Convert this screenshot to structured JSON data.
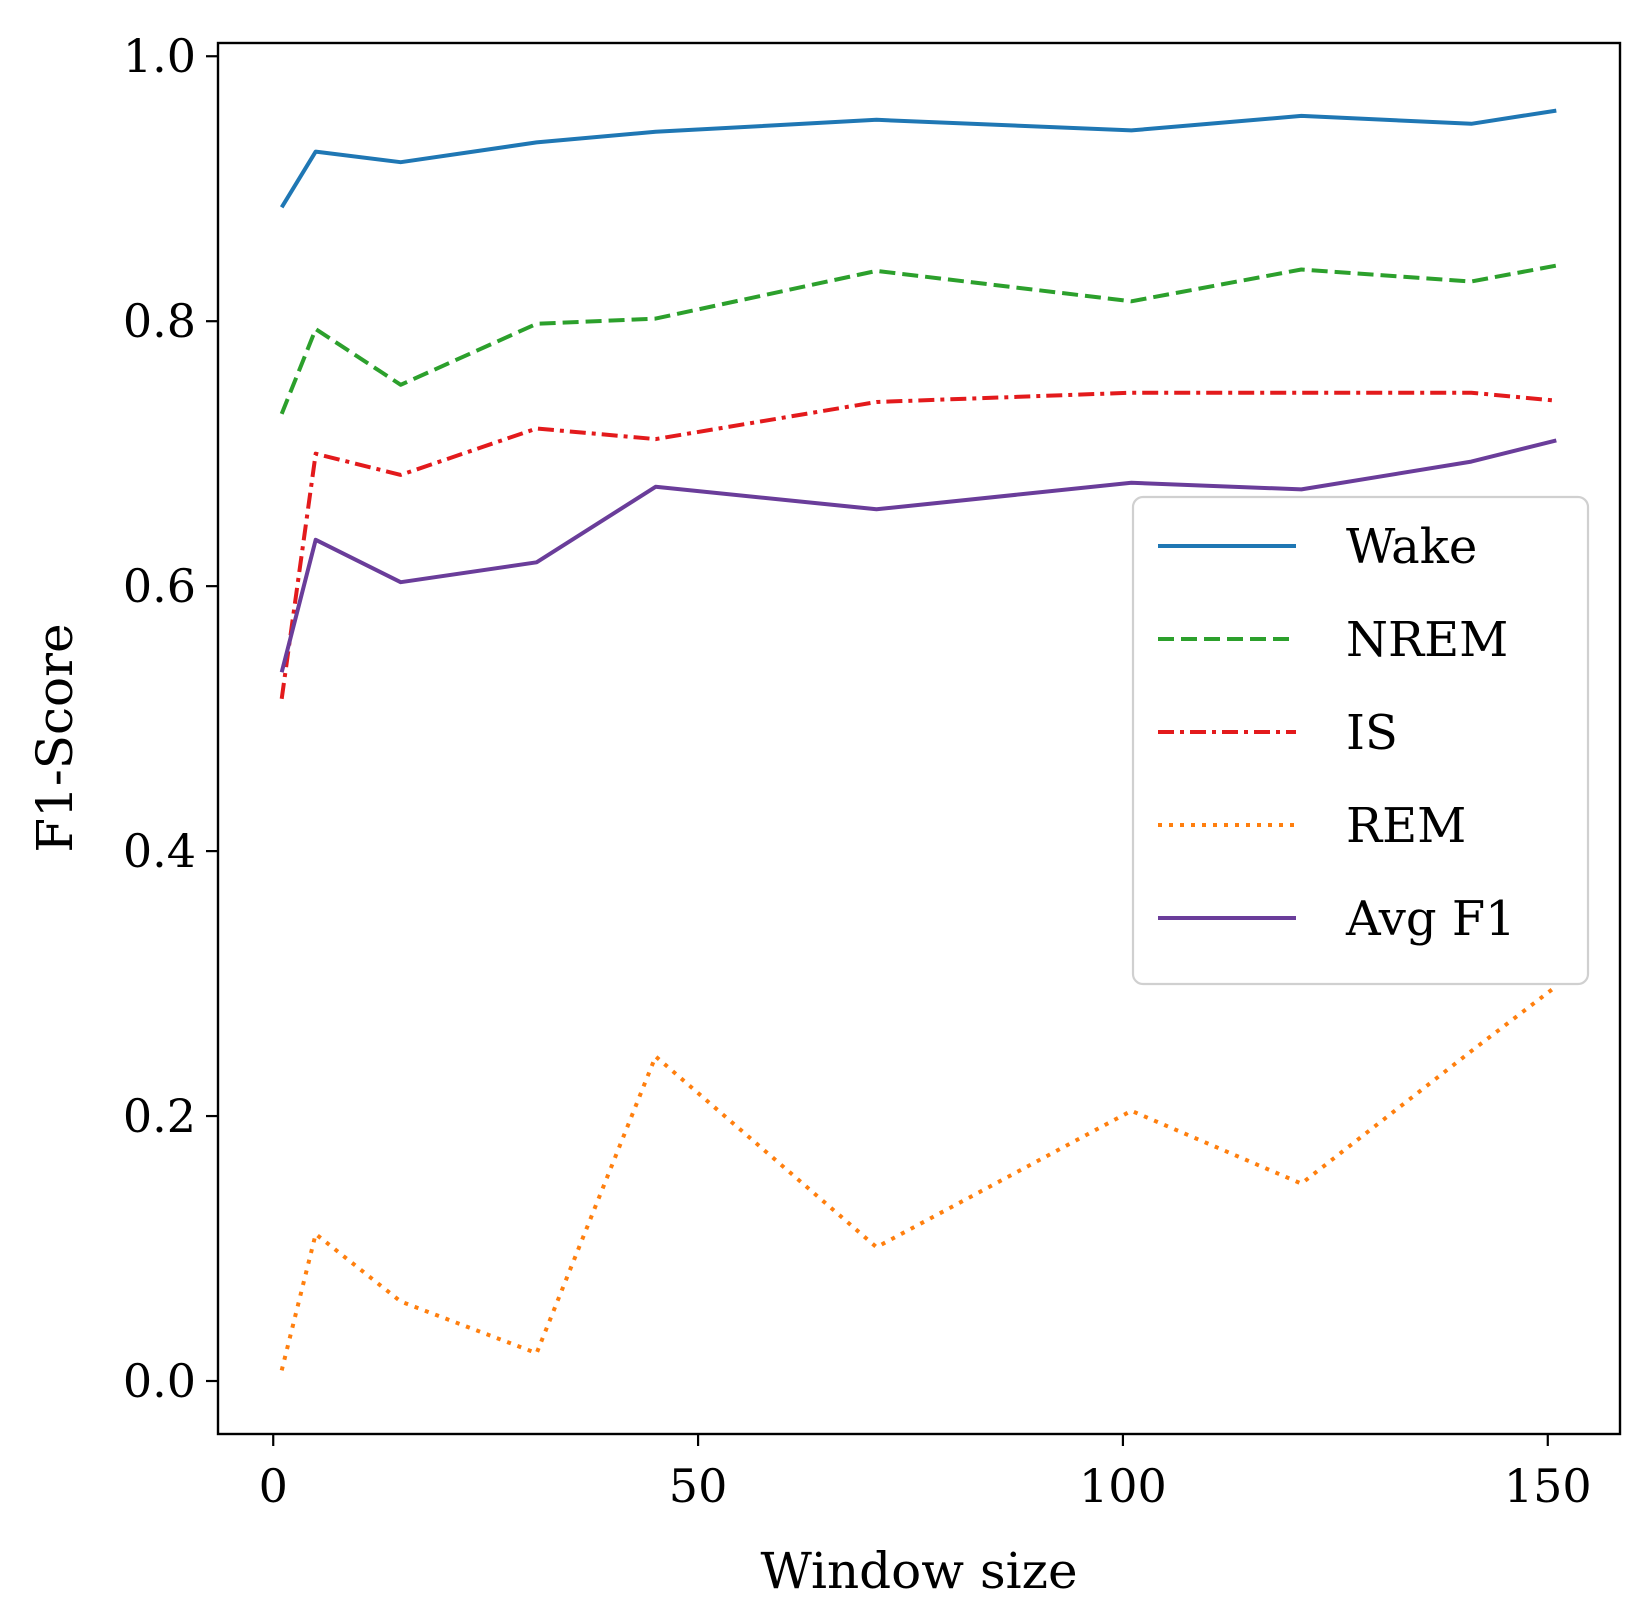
{
  "chart_data": {
    "type": "line",
    "title": "",
    "xlabel": "Window size",
    "ylabel": "F1-Score",
    "xlim": [
      -6.5,
      158.5
    ],
    "ylim": [
      -0.04,
      1.01
    ],
    "x_ticks": [
      0,
      50,
      100,
      150
    ],
    "y_ticks": [
      0.0,
      0.2,
      0.4,
      0.6,
      0.8,
      1.0
    ],
    "x_tick_labels": [
      "0",
      "50",
      "100",
      "150"
    ],
    "y_tick_labels": [
      "0.0",
      "0.2",
      "0.4",
      "0.6",
      "0.8",
      "1.0"
    ],
    "grid": false,
    "legend_position": "center-right",
    "x": [
      1,
      5,
      15,
      31,
      45,
      71,
      101,
      121,
      141,
      151
    ],
    "series": [
      {
        "name": "Wake",
        "color": "#1f77b4",
        "style": "solid",
        "values": [
          0.886,
          0.928,
          0.92,
          0.935,
          0.943,
          0.952,
          0.944,
          0.955,
          0.949,
          0.959
        ]
      },
      {
        "name": "NREM",
        "color": "#2ca02c",
        "style": "dashed",
        "values": [
          0.73,
          0.794,
          0.752,
          0.798,
          0.802,
          0.838,
          0.815,
          0.839,
          0.83,
          0.842
        ]
      },
      {
        "name": "IS",
        "color": "#e31a1c",
        "style": "dashdot",
        "values": [
          0.515,
          0.7,
          0.684,
          0.719,
          0.711,
          0.739,
          0.746,
          0.746,
          0.746,
          0.74
        ]
      },
      {
        "name": "REM",
        "color": "#ff7f0e",
        "style": "dotted",
        "values": [
          0.008,
          0.111,
          0.06,
          0.021,
          0.245,
          0.101,
          0.204,
          0.149,
          0.249,
          0.298
        ]
      },
      {
        "name": "Avg F1",
        "color": "#6a3d9a",
        "style": "solid",
        "values": [
          0.535,
          0.635,
          0.603,
          0.618,
          0.675,
          0.658,
          0.678,
          0.673,
          0.694,
          0.71
        ]
      }
    ]
  }
}
